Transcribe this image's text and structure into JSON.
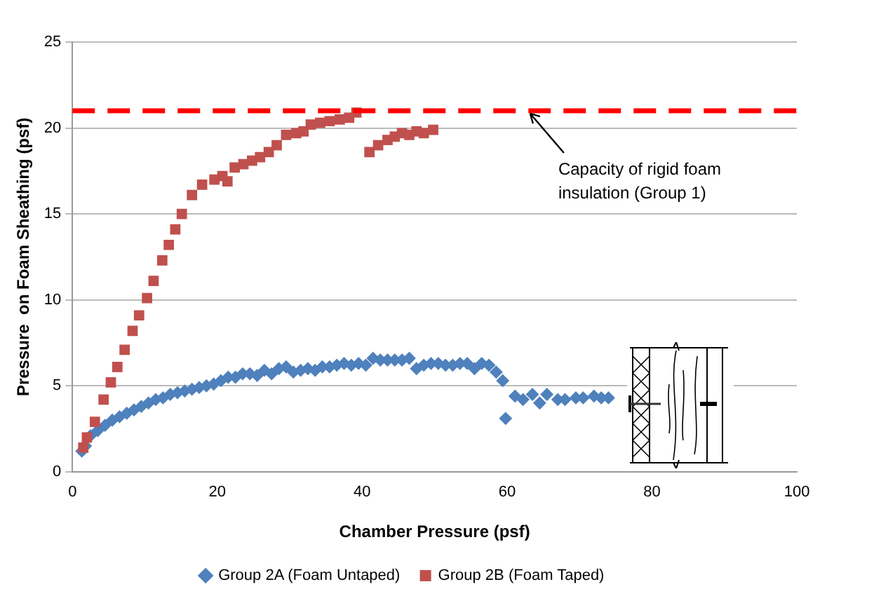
{
  "chart_data": {
    "type": "scatter",
    "xlabel": "Chamber Pressure (psf)",
    "ylabel": "Pressure  on Foam Sheathing (psf)",
    "xlim": [
      0,
      100
    ],
    "xticks": [
      0,
      20,
      40,
      60,
      80,
      100
    ],
    "ylim": [
      0,
      25
    ],
    "yticks": [
      0,
      5,
      10,
      15,
      20,
      25
    ],
    "grid": "y",
    "legend": "bottom",
    "series": [
      {
        "name": "Group 2A (Foam Untaped)",
        "color": "#4f81bd",
        "marker": "diamond",
        "x": [
          1.3,
          1.8,
          2.5,
          3.5,
          4.5,
          5.5,
          6.5,
          7.5,
          8.5,
          9.5,
          10.5,
          11.5,
          12.5,
          13.5,
          14.5,
          15.5,
          16.5,
          17.5,
          18.5,
          19.5,
          20.5,
          21.5,
          22.5,
          23.5,
          24.5,
          25.5,
          26.5,
          27.5,
          28.5,
          29.5,
          30.5,
          31.5,
          32.5,
          33.5,
          34.5,
          35.5,
          36.5,
          37.5,
          38.5,
          39.5,
          40.5,
          41.5,
          42.5,
          43.5,
          44.5,
          45.5,
          46.5,
          47.5,
          48.5,
          49.5,
          50.5,
          51.5,
          52.5,
          53.5,
          54.5,
          55.5,
          56.5,
          57.5,
          58.5,
          59.4,
          59.8,
          61.1,
          62.2,
          63.5,
          64.5,
          65.5,
          67,
          68,
          69.5,
          70.5,
          72,
          73,
          74
        ],
        "values": [
          1.2,
          1.5,
          2.1,
          2.4,
          2.7,
          3.0,
          3.2,
          3.4,
          3.6,
          3.8,
          4.0,
          4.2,
          4.3,
          4.5,
          4.6,
          4.7,
          4.8,
          4.9,
          5.0,
          5.1,
          5.3,
          5.5,
          5.5,
          5.7,
          5.7,
          5.6,
          5.9,
          5.7,
          6.0,
          6.1,
          5.8,
          5.9,
          6.0,
          5.9,
          6.1,
          6.1,
          6.2,
          6.3,
          6.2,
          6.3,
          6.2,
          6.6,
          6.5,
          6.5,
          6.5,
          6.5,
          6.6,
          6.0,
          6.2,
          6.3,
          6.3,
          6.2,
          6.2,
          6.3,
          6.3,
          6.0,
          6.3,
          6.2,
          5.8,
          5.3,
          3.1,
          4.4,
          4.2,
          4.5,
          4.0,
          4.5,
          4.2,
          4.2,
          4.3,
          4.3,
          4.4,
          4.3,
          4.3
        ]
      },
      {
        "name": "Group 2B (Foam Taped)",
        "color": "#c0504d",
        "marker": "square",
        "x": [
          1.5,
          2.0,
          3.1,
          4.3,
          5.3,
          6.2,
          7.2,
          8.3,
          9.2,
          10.3,
          11.2,
          12.4,
          13.3,
          14.2,
          15.1,
          16.5,
          17.9,
          19.6,
          20.7,
          21.4,
          22.4,
          23.6,
          24.8,
          25.9,
          27.1,
          28.2,
          29.5,
          30.9,
          31.9,
          32.9,
          34.2,
          35.5,
          36.9,
          38.2,
          39.2,
          41.0,
          42.2,
          43.5,
          44.5,
          45.5,
          46.5,
          47.5,
          48.5,
          49.8
        ],
        "values": [
          1.4,
          2.0,
          2.9,
          4.2,
          5.2,
          6.1,
          7.1,
          8.2,
          9.1,
          10.1,
          11.1,
          12.3,
          13.2,
          14.1,
          15.0,
          16.1,
          16.7,
          17.0,
          17.2,
          16.9,
          17.7,
          17.9,
          18.1,
          18.3,
          18.6,
          19.0,
          19.6,
          19.7,
          19.8,
          20.2,
          20.3,
          20.4,
          20.5,
          20.6,
          20.9,
          18.6,
          19.0,
          19.3,
          19.5,
          19.7,
          19.6,
          19.8,
          19.7,
          19.9
        ]
      }
    ],
    "ref_lines": [
      {
        "axis": "y",
        "value": 21,
        "color": "#ff0000",
        "line_style": "dashed"
      }
    ],
    "annotations": [
      {
        "text": "Capacity of rigid foam insulation (Group 1)",
        "x": 63,
        "y": 21
      }
    ]
  }
}
